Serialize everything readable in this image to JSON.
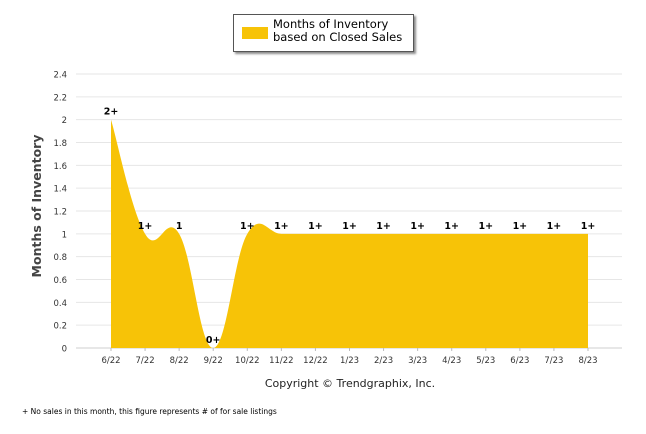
{
  "chart_data": {
    "type": "area",
    "title": "",
    "xlabel": "",
    "ylabel": "Months of Inventory",
    "ylim": [
      0,
      2.4
    ],
    "yticks": [
      "0",
      "0.2",
      "0.4",
      "0.6",
      "0.8",
      "1",
      "1.2",
      "1.4",
      "1.6",
      "1.8",
      "2",
      "2.2",
      "2.4"
    ],
    "categories": [
      "6/22",
      "7/22",
      "8/22",
      "9/22",
      "10/22",
      "11/22",
      "12/22",
      "1/23",
      "2/23",
      "3/23",
      "4/23",
      "5/23",
      "6/23",
      "7/23",
      "8/23"
    ],
    "series": [
      {
        "name": "Months of Inventory based on Closed Sales",
        "color": "#F7C307",
        "values": [
          2,
          1,
          1,
          0,
          1,
          1,
          1,
          1,
          1,
          1,
          1,
          1,
          1,
          1,
          1
        ],
        "data_labels": [
          "2+",
          "1+",
          "1",
          "0+",
          "1+",
          "1+",
          "1+",
          "1+",
          "1+",
          "1+",
          "1+",
          "1+",
          "1+",
          "1+",
          "1+"
        ]
      }
    ],
    "legend": "top-center",
    "grid": true,
    "source_note": "Copyright © Trendgraphix, Inc."
  },
  "legend": {
    "label": "Months of Inventory based on Closed Sales",
    "color": "#F7C307"
  },
  "footnote": "+  No sales in this month, this figure represents # of for sale listings"
}
